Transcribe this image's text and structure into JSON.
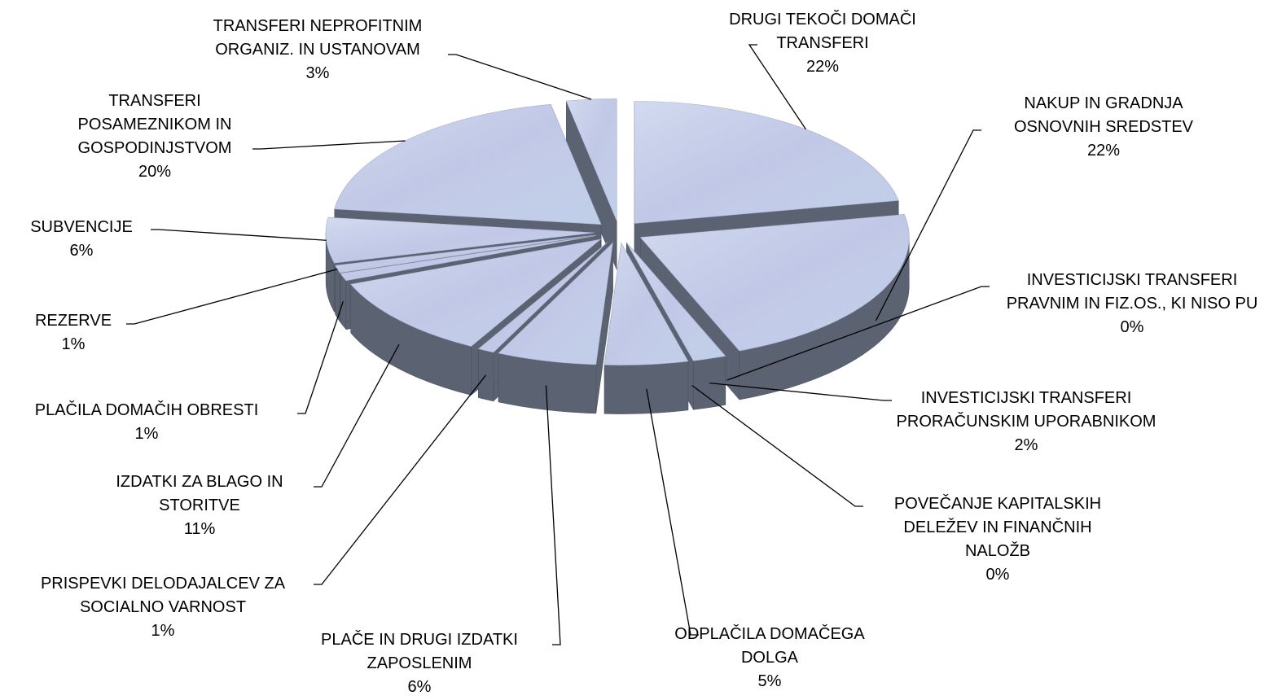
{
  "chart_data": {
    "type": "pie3d",
    "categories": [
      "DRUGI TEKOČI DOMAČI TRANSFERI",
      "NAKUP IN GRADNJA OSNOVNIH SREDSTEV",
      "INVESTICIJSKI TRANSFERI PRAVNIM IN FIZ.OS., KI NISO PU",
      "INVESTICIJSKI TRANSFERI PRORAČUNSKIM UPORABNIKOM",
      "POVEČANJE KAPITALSKIH DELEŽEV IN FINANČNIH NALOŽB",
      "ODPLAČILA DOMAČEGA DOLGA",
      "PLAČE IN DRUGI IZDATKI ZAPOSLENIM",
      "PRISPEVKI DELODAJALCEV ZA SOCIALNO VARNOST",
      "IZDATKI ZA BLAGO IN STORITVE",
      "PLAČILA DOMAČIH OBRESTI",
      "REZERVE",
      "SUBVENCIJE",
      "TRANSFERI POSAMEZNIKOM IN GOSPODINJSTVOM",
      "TRANSFERI NEPROFITNIM ORGANIZ. IN USTANOVAM"
    ],
    "values": [
      22,
      22,
      0,
      2,
      0,
      5,
      6,
      1,
      11,
      1,
      1,
      6,
      20,
      3
    ],
    "value_labels": [
      "22%",
      "22%",
      "0%",
      "2%",
      "0%",
      "5%",
      "6%",
      "1%",
      "11%",
      "1%",
      "1%",
      "6%",
      "20%",
      "3%"
    ],
    "color": "#b9c8e6"
  }
}
